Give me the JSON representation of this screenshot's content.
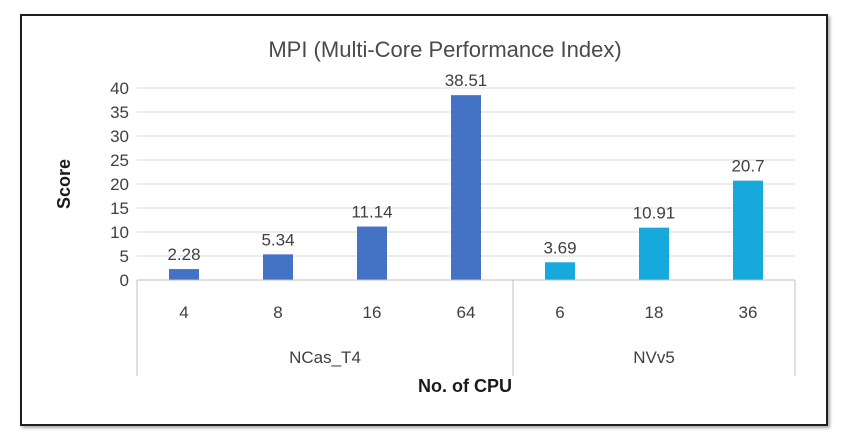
{
  "chart_data": {
    "type": "bar",
    "title": "MPI (Multi-Core Performance Index)",
    "xlabel": "No. of CPU",
    "ylabel": "Score",
    "ylim": [
      0,
      40
    ],
    "yticks": [
      0,
      5,
      10,
      15,
      20,
      25,
      30,
      35,
      40
    ],
    "grid": true,
    "legend": "none",
    "groups": [
      {
        "name": "NCas_T4",
        "color": "#4472c4",
        "categories": [
          "4",
          "8",
          "16",
          "64"
        ],
        "values": [
          2.28,
          5.34,
          11.14,
          38.51
        ],
        "labels": [
          "2.28",
          "5.34",
          "11.14",
          "38.51"
        ]
      },
      {
        "name": "NVv5",
        "color": "#17a9dc",
        "categories": [
          "6",
          "18",
          "36"
        ],
        "values": [
          3.69,
          10.91,
          20.7
        ],
        "labels": [
          "3.69",
          "10.91",
          "20.7"
        ]
      }
    ]
  }
}
